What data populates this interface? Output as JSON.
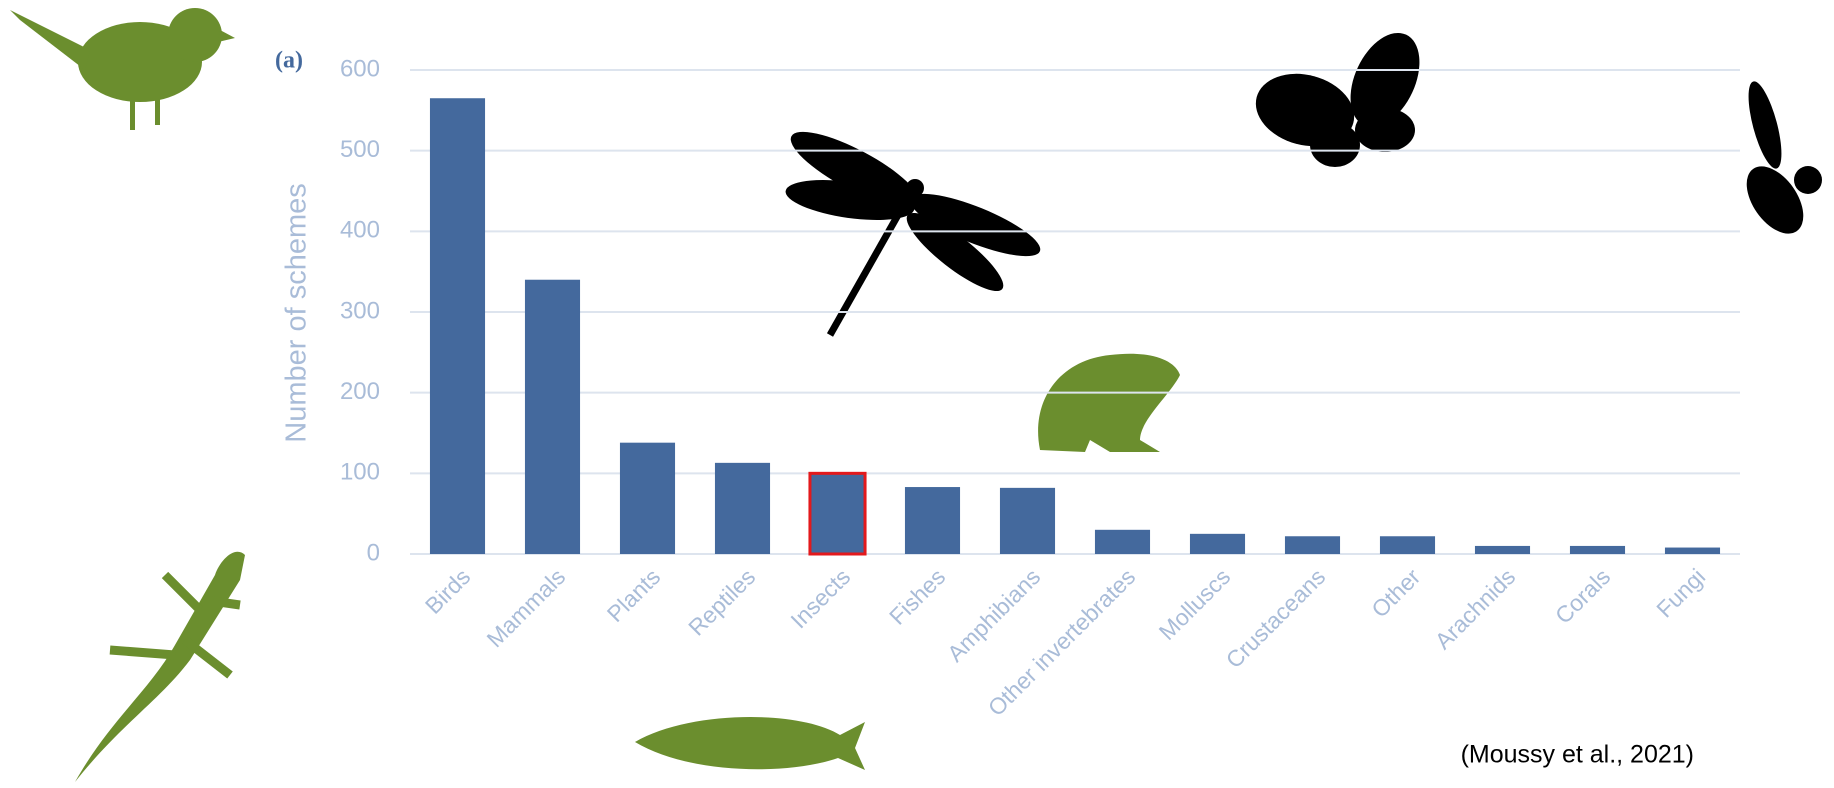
{
  "chart_data": {
    "type": "bar",
    "panel_label": "(a)",
    "ylabel": "Number of schemes",
    "source": "(Moussy et al., 2021)",
    "categories": [
      "Birds",
      "Mammals",
      "Plants",
      "Reptiles",
      "Insects",
      "Fishes",
      "Amphibians",
      "Other invertebrates",
      "Molluscs",
      "Crustaceans",
      "Other",
      "Arachnids",
      "Corals",
      "Fungi"
    ],
    "values": [
      565,
      340,
      138,
      113,
      100,
      83,
      82,
      30,
      25,
      22,
      22,
      10,
      10,
      8
    ],
    "color": "#44699d",
    "highlight_index": 4,
    "highlight_color": "#e3191c",
    "ylim": [
      0,
      600
    ],
    "yticks": [
      0,
      100,
      200,
      300,
      400,
      500,
      600
    ],
    "grid": true
  }
}
